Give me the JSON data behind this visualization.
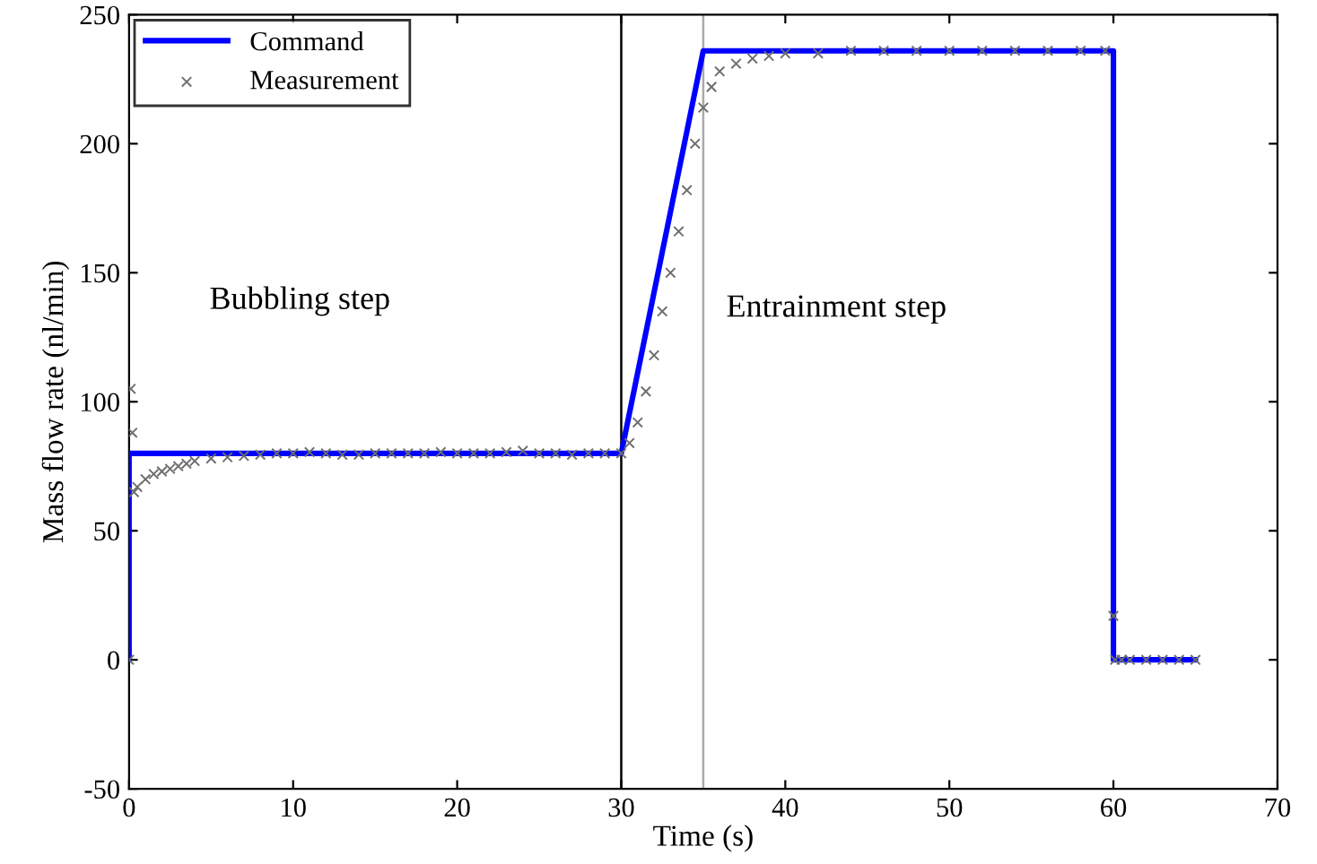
{
  "chart_data": {
    "type": "line",
    "xlabel": "Time (s)",
    "ylabel": "Mass flow rate (nl/min)",
    "xlim": [
      0,
      70
    ],
    "ylim": [
      -50,
      250
    ],
    "xticks": [
      0,
      10,
      20,
      30,
      40,
      50,
      60,
      70
    ],
    "yticks": [
      -50,
      0,
      50,
      100,
      150,
      200,
      250
    ],
    "grid": false,
    "legend": "top left",
    "series": [
      {
        "name": "Command",
        "color": "#0000ff",
        "marker": "none",
        "line_style": "solid",
        "x": [
          0,
          0,
          30,
          35,
          60,
          60,
          65
        ],
        "values": [
          0,
          80,
          80,
          236,
          236,
          0,
          0
        ]
      },
      {
        "name": "Measurement",
        "type": "scatter",
        "color": "#6e6e6e",
        "marker": "cross",
        "x": [
          0,
          0.1,
          0.2,
          0.3,
          0.5,
          1,
          1.5,
          2,
          2.5,
          3,
          3.5,
          4,
          5,
          6,
          7,
          8,
          9,
          10,
          11,
          12,
          13,
          14,
          15,
          16,
          17,
          18,
          19,
          20,
          21,
          22,
          23,
          24,
          25,
          26,
          27,
          28,
          29,
          30,
          30.5,
          31,
          31.5,
          32,
          32.5,
          33,
          33.5,
          34,
          34.5,
          35,
          35.5,
          36,
          37,
          38,
          39,
          40,
          42,
          44,
          46,
          48,
          50,
          52,
          54,
          56,
          58,
          59.5,
          60,
          60.1,
          60.5,
          61,
          62,
          63,
          64,
          65
        ],
        "values": [
          0,
          105,
          88,
          65,
          67,
          70,
          72,
          73,
          74,
          75,
          76,
          77,
          78,
          78.5,
          79,
          79.5,
          80,
          80,
          80.5,
          80,
          79.5,
          79.5,
          80,
          80,
          80,
          80,
          80.5,
          80,
          80,
          80,
          80.5,
          81,
          80,
          80,
          79.5,
          80,
          80,
          80,
          84,
          92,
          104,
          118,
          135,
          150,
          166,
          182,
          200,
          214,
          222,
          228,
          231,
          233,
          234,
          235,
          235,
          236,
          236,
          236,
          236,
          236,
          236,
          236,
          236,
          236,
          17,
          0,
          0,
          0,
          0,
          0,
          0,
          0
        ]
      }
    ],
    "ref_lines": [
      {
        "axis": "x",
        "value": 30,
        "color": "#000000"
      },
      {
        "axis": "x",
        "value": 35,
        "color": "#aaaaaa"
      }
    ],
    "annotations": [
      "Bubbling step",
      "Entrainment step"
    ]
  }
}
